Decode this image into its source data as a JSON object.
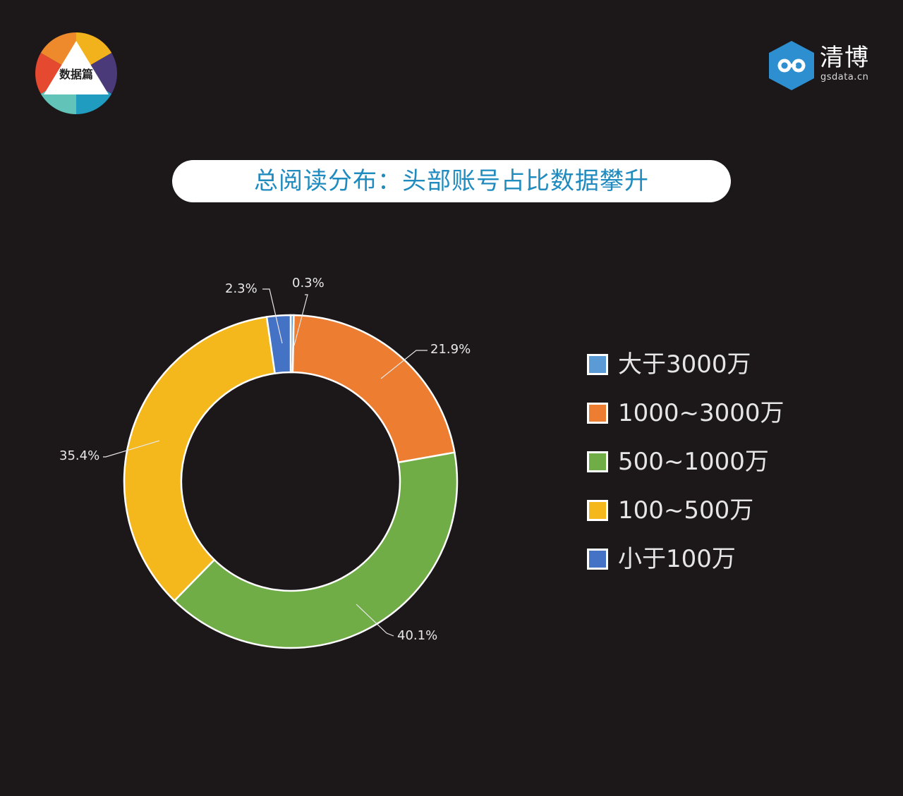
{
  "badge": {
    "label": "数据篇"
  },
  "brand": {
    "name": "清博",
    "domain": "gsdata.cn",
    "color": "#2d8fd0"
  },
  "title": "总阅读分布：头部账号占比数据攀升",
  "chart_data": {
    "type": "pie",
    "subtype": "donut",
    "title": "总阅读分布：头部账号占比数据攀升",
    "categories": [
      "大于3000万",
      "1000~3000万",
      "500~1000万",
      "100~500万",
      "小于100万"
    ],
    "values": [
      0.3,
      21.9,
      40.1,
      35.4,
      2.3
    ],
    "value_labels": [
      "0.3%",
      "21.9%",
      "40.1%",
      "35.4%",
      "2.3%"
    ],
    "colors": [
      "#5b9bd5",
      "#ed7d31",
      "#70ad47",
      "#f5b81c",
      "#4472c4"
    ],
    "start_angle": "12 o'clock",
    "direction": "clockwise",
    "legend_position": "right",
    "unit": "%"
  },
  "legend": {
    "items": [
      {
        "label": "大于3000万",
        "color": "#5b9bd5"
      },
      {
        "label": "1000~3000万",
        "color": "#ed7d31"
      },
      {
        "label": "500~1000万",
        "color": "#70ad47"
      },
      {
        "label": "100~500万",
        "color": "#f5b81c"
      },
      {
        "label": "小于100万",
        "color": "#4472c4"
      }
    ]
  }
}
